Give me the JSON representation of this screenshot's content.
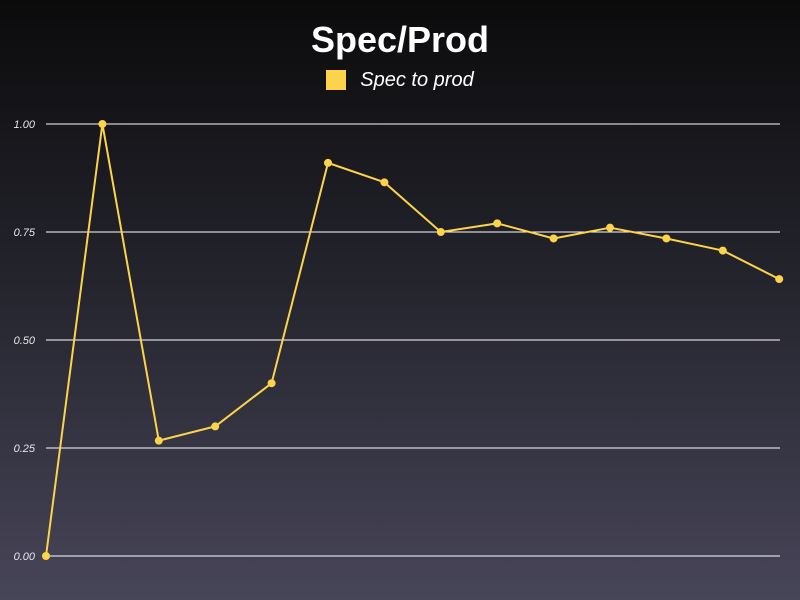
{
  "chart_data": {
    "type": "line",
    "title": "Spec/Prod",
    "xlabel": "",
    "ylabel": "",
    "ylim": [
      0,
      1
    ],
    "yticks": [
      "0.00",
      "0.25",
      "0.50",
      "0.75",
      "1.00"
    ],
    "grid": "horizontal",
    "legend_position": "top-center",
    "series": [
      {
        "name": "Spec to prod",
        "color": "#fcd34a",
        "values": [
          0.0,
          1.0,
          0.267,
          0.3,
          0.4,
          0.91,
          0.865,
          0.75,
          0.77,
          0.735,
          0.76,
          0.735,
          0.707,
          0.641
        ]
      }
    ]
  },
  "colors": {
    "gridline": "#ffffff",
    "series": "#fcd34a"
  }
}
